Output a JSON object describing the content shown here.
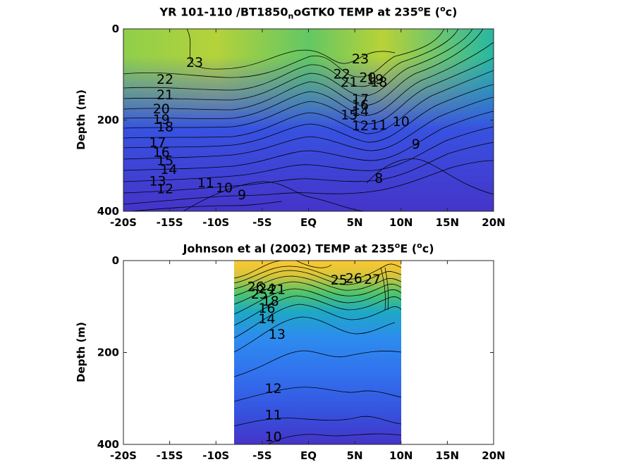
{
  "chart_data": [
    {
      "type": "contour",
      "title": {
        "prefix": "YR 101-110 /BT1850",
        "sub": "n",
        "middle": "oGTK0 TEMP at 235",
        "sup1": "o",
        "middle2": "E (",
        "sup2": "o",
        "suffix": "c)"
      },
      "xlabel": "",
      "ylabel": "Depth (m)",
      "xlim": [
        -20,
        20
      ],
      "ylim": [
        400,
        0
      ],
      "x_ticks": [
        -20,
        -15,
        -10,
        -5,
        0,
        5,
        10,
        15,
        20
      ],
      "x_tick_labels": [
        "-20S",
        "-15S",
        "-10S",
        "-5S",
        "EQ",
        "5N",
        "10N",
        "15N",
        "20N"
      ],
      "y_ticks": [
        0,
        200,
        400
      ],
      "y_tick_labels": [
        "0",
        "200",
        "400"
      ],
      "contour_levels": [
        8,
        9,
        10,
        11,
        12,
        13,
        14,
        15,
        16,
        17,
        18,
        19,
        20,
        21,
        22,
        23
      ],
      "contour_labels": [
        {
          "text": "23",
          "x": -12.3,
          "y": 75
        },
        {
          "text": "22",
          "x": -15.5,
          "y": 112
        },
        {
          "text": "21",
          "x": -15.5,
          "y": 146
        },
        {
          "text": "20",
          "x": -15.9,
          "y": 177
        },
        {
          "text": "19",
          "x": -15.9,
          "y": 200
        },
        {
          "text": "18",
          "x": -15.5,
          "y": 216
        },
        {
          "text": "17",
          "x": -16.3,
          "y": 250
        },
        {
          "text": "16",
          "x": -15.9,
          "y": 272
        },
        {
          "text": "15",
          "x": -15.5,
          "y": 290
        },
        {
          "text": "14",
          "x": -15.1,
          "y": 310
        },
        {
          "text": "13",
          "x": -16.3,
          "y": 335
        },
        {
          "text": "12",
          "x": -15.5,
          "y": 352
        },
        {
          "text": "11",
          "x": -11.1,
          "y": 339
        },
        {
          "text": "10",
          "x": -9.1,
          "y": 350
        },
        {
          "text": "9",
          "x": -7.2,
          "y": 365
        },
        {
          "text": "23",
          "x": 5.6,
          "y": 67
        },
        {
          "text": "22",
          "x": 3.6,
          "y": 100
        },
        {
          "text": "21",
          "x": 4.4,
          "y": 118
        },
        {
          "text": "20",
          "x": 6.4,
          "y": 108
        },
        {
          "text": "19",
          "x": 7.2,
          "y": 112
        },
        {
          "text": "18",
          "x": 7.6,
          "y": 118
        },
        {
          "text": "17",
          "x": 5.6,
          "y": 155
        },
        {
          "text": "16",
          "x": 5.6,
          "y": 168
        },
        {
          "text": "14",
          "x": 5.6,
          "y": 182
        },
        {
          "text": "15",
          "x": 4.4,
          "y": 190
        },
        {
          "text": "12",
          "x": 5.6,
          "y": 214
        },
        {
          "text": "11",
          "x": 7.6,
          "y": 212
        },
        {
          "text": "10",
          "x": 10.0,
          "y": 205
        },
        {
          "text": "9",
          "x": 11.6,
          "y": 254
        },
        {
          "text": "8",
          "x": 7.6,
          "y": 329
        }
      ]
    },
    {
      "type": "contour",
      "title": {
        "prefix": "Johnson et al (2002) TEMP at 235",
        "sub": "",
        "middle": "",
        "sup1": "o",
        "middle2": "E (",
        "sup2": "o",
        "suffix": "c)"
      },
      "xlabel": "",
      "ylabel": "Depth (m)",
      "xlim": [
        -20,
        20
      ],
      "ylim": [
        400,
        0
      ],
      "data_x_range": [
        -8,
        10
      ],
      "x_ticks": [
        -20,
        -15,
        -10,
        -5,
        0,
        5,
        10,
        15,
        20
      ],
      "x_tick_labels": [
        "-20S",
        "-15S",
        "-10S",
        "-5S",
        "EQ",
        "5N",
        "10N",
        "15N",
        "20N"
      ],
      "y_ticks": [
        0,
        200,
        400
      ],
      "y_tick_labels": [
        "0",
        "200",
        "400"
      ],
      "contour_levels": [
        10,
        11,
        12,
        13,
        14,
        15,
        16,
        17,
        18,
        19,
        20,
        21,
        22,
        23,
        24,
        25,
        26,
        27
      ],
      "contour_labels": [
        {
          "text": "26",
          "x": -5.7,
          "y": 58
        },
        {
          "text": "25",
          "x": -5.3,
          "y": 74
        },
        {
          "text": "24",
          "x": -4.5,
          "y": 62
        },
        {
          "text": "21",
          "x": -3.4,
          "y": 64
        },
        {
          "text": "18",
          "x": -4.1,
          "y": 90
        },
        {
          "text": "16",
          "x": -4.5,
          "y": 105
        },
        {
          "text": "14",
          "x": -4.5,
          "y": 128
        },
        {
          "text": "13",
          "x": -3.4,
          "y": 162
        },
        {
          "text": "25",
          "x": 3.3,
          "y": 44
        },
        {
          "text": "26",
          "x": 4.9,
          "y": 40
        },
        {
          "text": "27",
          "x": 6.9,
          "y": 42
        },
        {
          "text": "12",
          "x": -3.8,
          "y": 280
        },
        {
          "text": "11",
          "x": -3.8,
          "y": 337
        },
        {
          "text": "10",
          "x": -3.8,
          "y": 385
        }
      ]
    }
  ]
}
